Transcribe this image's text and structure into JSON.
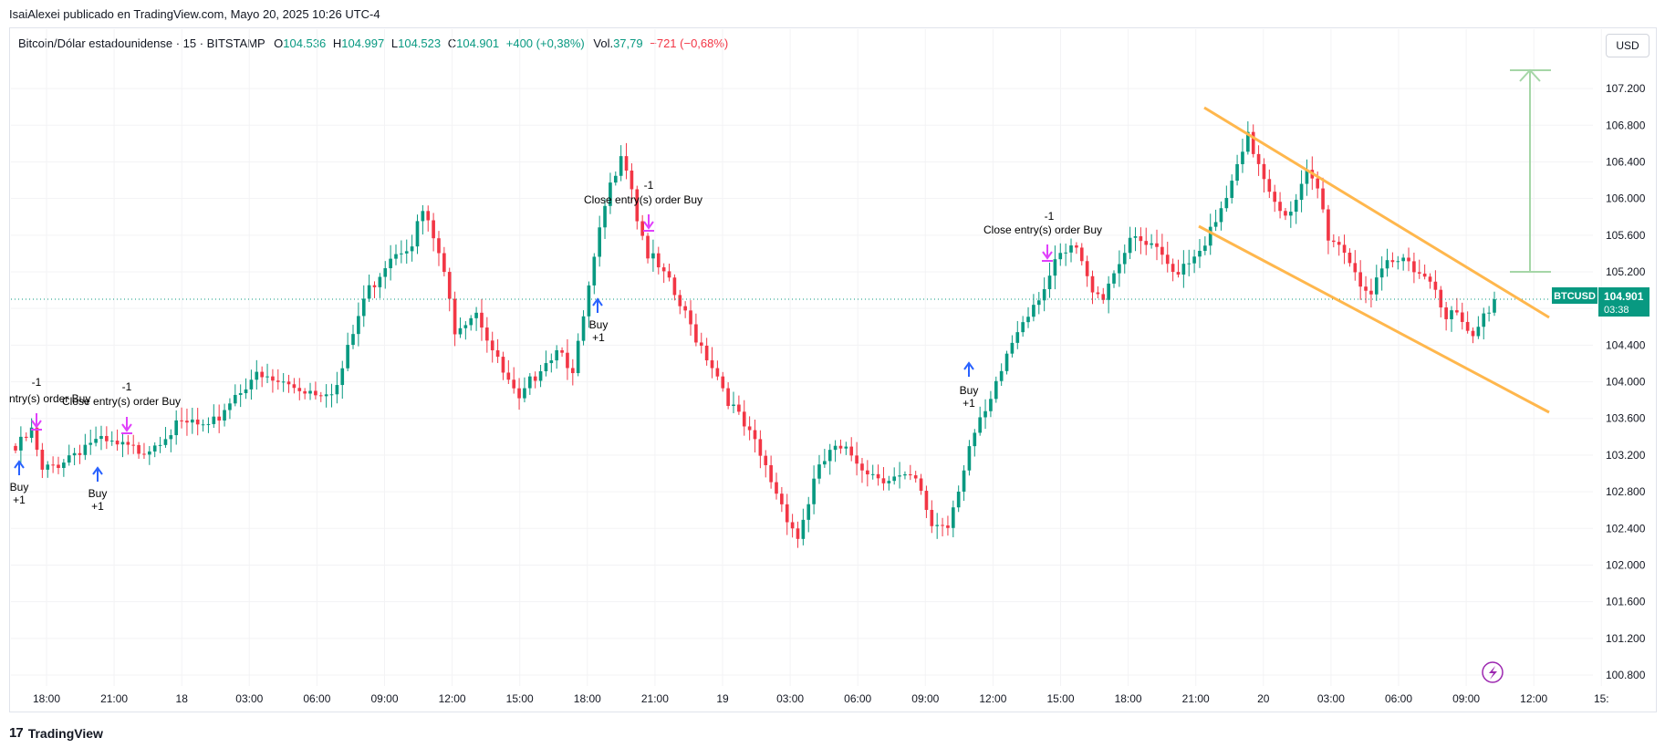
{
  "header": {
    "publisher_line": "IsaiAlexei publicado en TradingView.com, Mayo 20, 2025 10:26 UTC-4"
  },
  "legend": {
    "symbol": "Bitcoin/Dólar estadounidense · 15 · BITSTAMP",
    "o_label": "O",
    "o_value": "104.536",
    "h_label": "H",
    "h_value": "104.997",
    "l_label": "L",
    "l_value": "104.523",
    "c_label": "C",
    "c_value": "104.901",
    "change": "+400 (+0,38%)",
    "vol_label": "Vol.",
    "vol_value": "37,79",
    "vol_change": "−721 (−0,68%)"
  },
  "currency_button": "USD",
  "price_tag": {
    "symbol": "BTCUSD",
    "price": "104.901",
    "countdown": "03:38"
  },
  "footer": {
    "brand": "TradingView",
    "logo": "17"
  },
  "colors": {
    "up": "#089981",
    "down": "#f23645",
    "channel": "#ffb74d",
    "target": "#a5d6a7",
    "buy": "#2962ff",
    "close": "#e040fb"
  },
  "chart_data": {
    "type": "candlestick",
    "ylim": [
      100.6,
      107.6
    ],
    "y_ticks": [
      "107.200",
      "106.800",
      "106.400",
      "106.000",
      "105.600",
      "105.200",
      "104.800",
      "104.400",
      "104.000",
      "103.600",
      "103.200",
      "102.800",
      "102.400",
      "102.000",
      "101.600",
      "101.200",
      "100.800"
    ],
    "x_ticks": [
      "18:00",
      "21:00",
      "18",
      "03:00",
      "06:00",
      "09:00",
      "12:00",
      "15:00",
      "18:00",
      "21:00",
      "19",
      "03:00",
      "06:00",
      "09:00",
      "12:00",
      "15:00",
      "18:00",
      "21:00",
      "20",
      "03:00",
      "06:00",
      "09:00",
      "12:00",
      "15:"
    ],
    "last_price": 104.901,
    "anchors": [
      [
        0,
        103.25
      ],
      [
        3,
        103.45
      ],
      [
        5,
        103.0
      ],
      [
        10,
        103.2
      ],
      [
        14,
        103.35
      ],
      [
        18,
        103.3
      ],
      [
        22,
        103.25
      ],
      [
        25,
        103.3
      ],
      [
        28,
        103.45
      ],
      [
        33,
        103.55
      ],
      [
        36,
        103.45
      ],
      [
        40,
        103.8
      ],
      [
        44,
        104.05
      ],
      [
        48,
        104.0
      ],
      [
        52,
        103.95
      ],
      [
        56,
        103.9
      ],
      [
        60,
        103.95
      ],
      [
        65,
        104.9
      ],
      [
        70,
        105.4
      ],
      [
        74,
        105.55
      ],
      [
        76,
        105.85
      ],
      [
        79,
        105.4
      ],
      [
        82,
        104.6
      ],
      [
        86,
        104.8
      ],
      [
        90,
        104.2
      ],
      [
        94,
        103.75
      ],
      [
        98,
        104.2
      ],
      [
        102,
        104.4
      ],
      [
        104,
        104.05
      ],
      [
        107,
        105.0
      ],
      [
        110,
        105.9
      ],
      [
        113,
        106.55
      ],
      [
        115,
        106.15
      ],
      [
        116,
        105.8
      ],
      [
        118,
        105.4
      ],
      [
        122,
        105.05
      ],
      [
        126,
        104.6
      ],
      [
        130,
        104.2
      ],
      [
        134,
        103.7
      ],
      [
        138,
        103.3
      ],
      [
        142,
        102.8
      ],
      [
        146,
        102.3
      ],
      [
        149,
        102.9
      ],
      [
        152,
        103.25
      ],
      [
        156,
        103.2
      ],
      [
        160,
        103.0
      ],
      [
        164,
        102.95
      ],
      [
        168,
        102.9
      ],
      [
        171,
        102.45
      ],
      [
        174,
        102.45
      ],
      [
        178,
        103.3
      ],
      [
        182,
        103.75
      ],
      [
        185,
        104.3
      ],
      [
        188,
        104.7
      ],
      [
        192,
        105.05
      ],
      [
        195,
        105.35
      ],
      [
        198,
        105.45
      ],
      [
        200,
        105.1
      ],
      [
        203,
        104.95
      ],
      [
        206,
        105.35
      ],
      [
        209,
        105.55
      ],
      [
        213,
        105.4
      ],
      [
        216,
        105.2
      ],
      [
        220,
        105.4
      ],
      [
        224,
        105.7
      ],
      [
        228,
        106.3
      ],
      [
        230,
        106.65
      ],
      [
        232,
        106.4
      ],
      [
        235,
        106.0
      ],
      [
        238,
        105.8
      ],
      [
        241,
        106.25
      ],
      [
        243,
        106.1
      ],
      [
        245,
        105.6
      ],
      [
        248,
        105.45
      ],
      [
        251,
        105.1
      ],
      [
        253,
        104.95
      ],
      [
        256,
        105.25
      ],
      [
        260,
        105.35
      ],
      [
        263,
        105.15
      ],
      [
        265,
        105.05
      ],
      [
        267,
        104.75
      ],
      [
        269,
        104.7
      ],
      [
        272,
        104.45
      ],
      [
        274,
        104.7
      ],
      [
        276,
        104.9
      ]
    ]
  },
  "annotations": {
    "buy_label": "Buy",
    "plus_one": "+1",
    "minus_one": "-1",
    "close_label": "Close entry(s) order Buy",
    "close_label_cut": "ntry(s) order Buy"
  }
}
